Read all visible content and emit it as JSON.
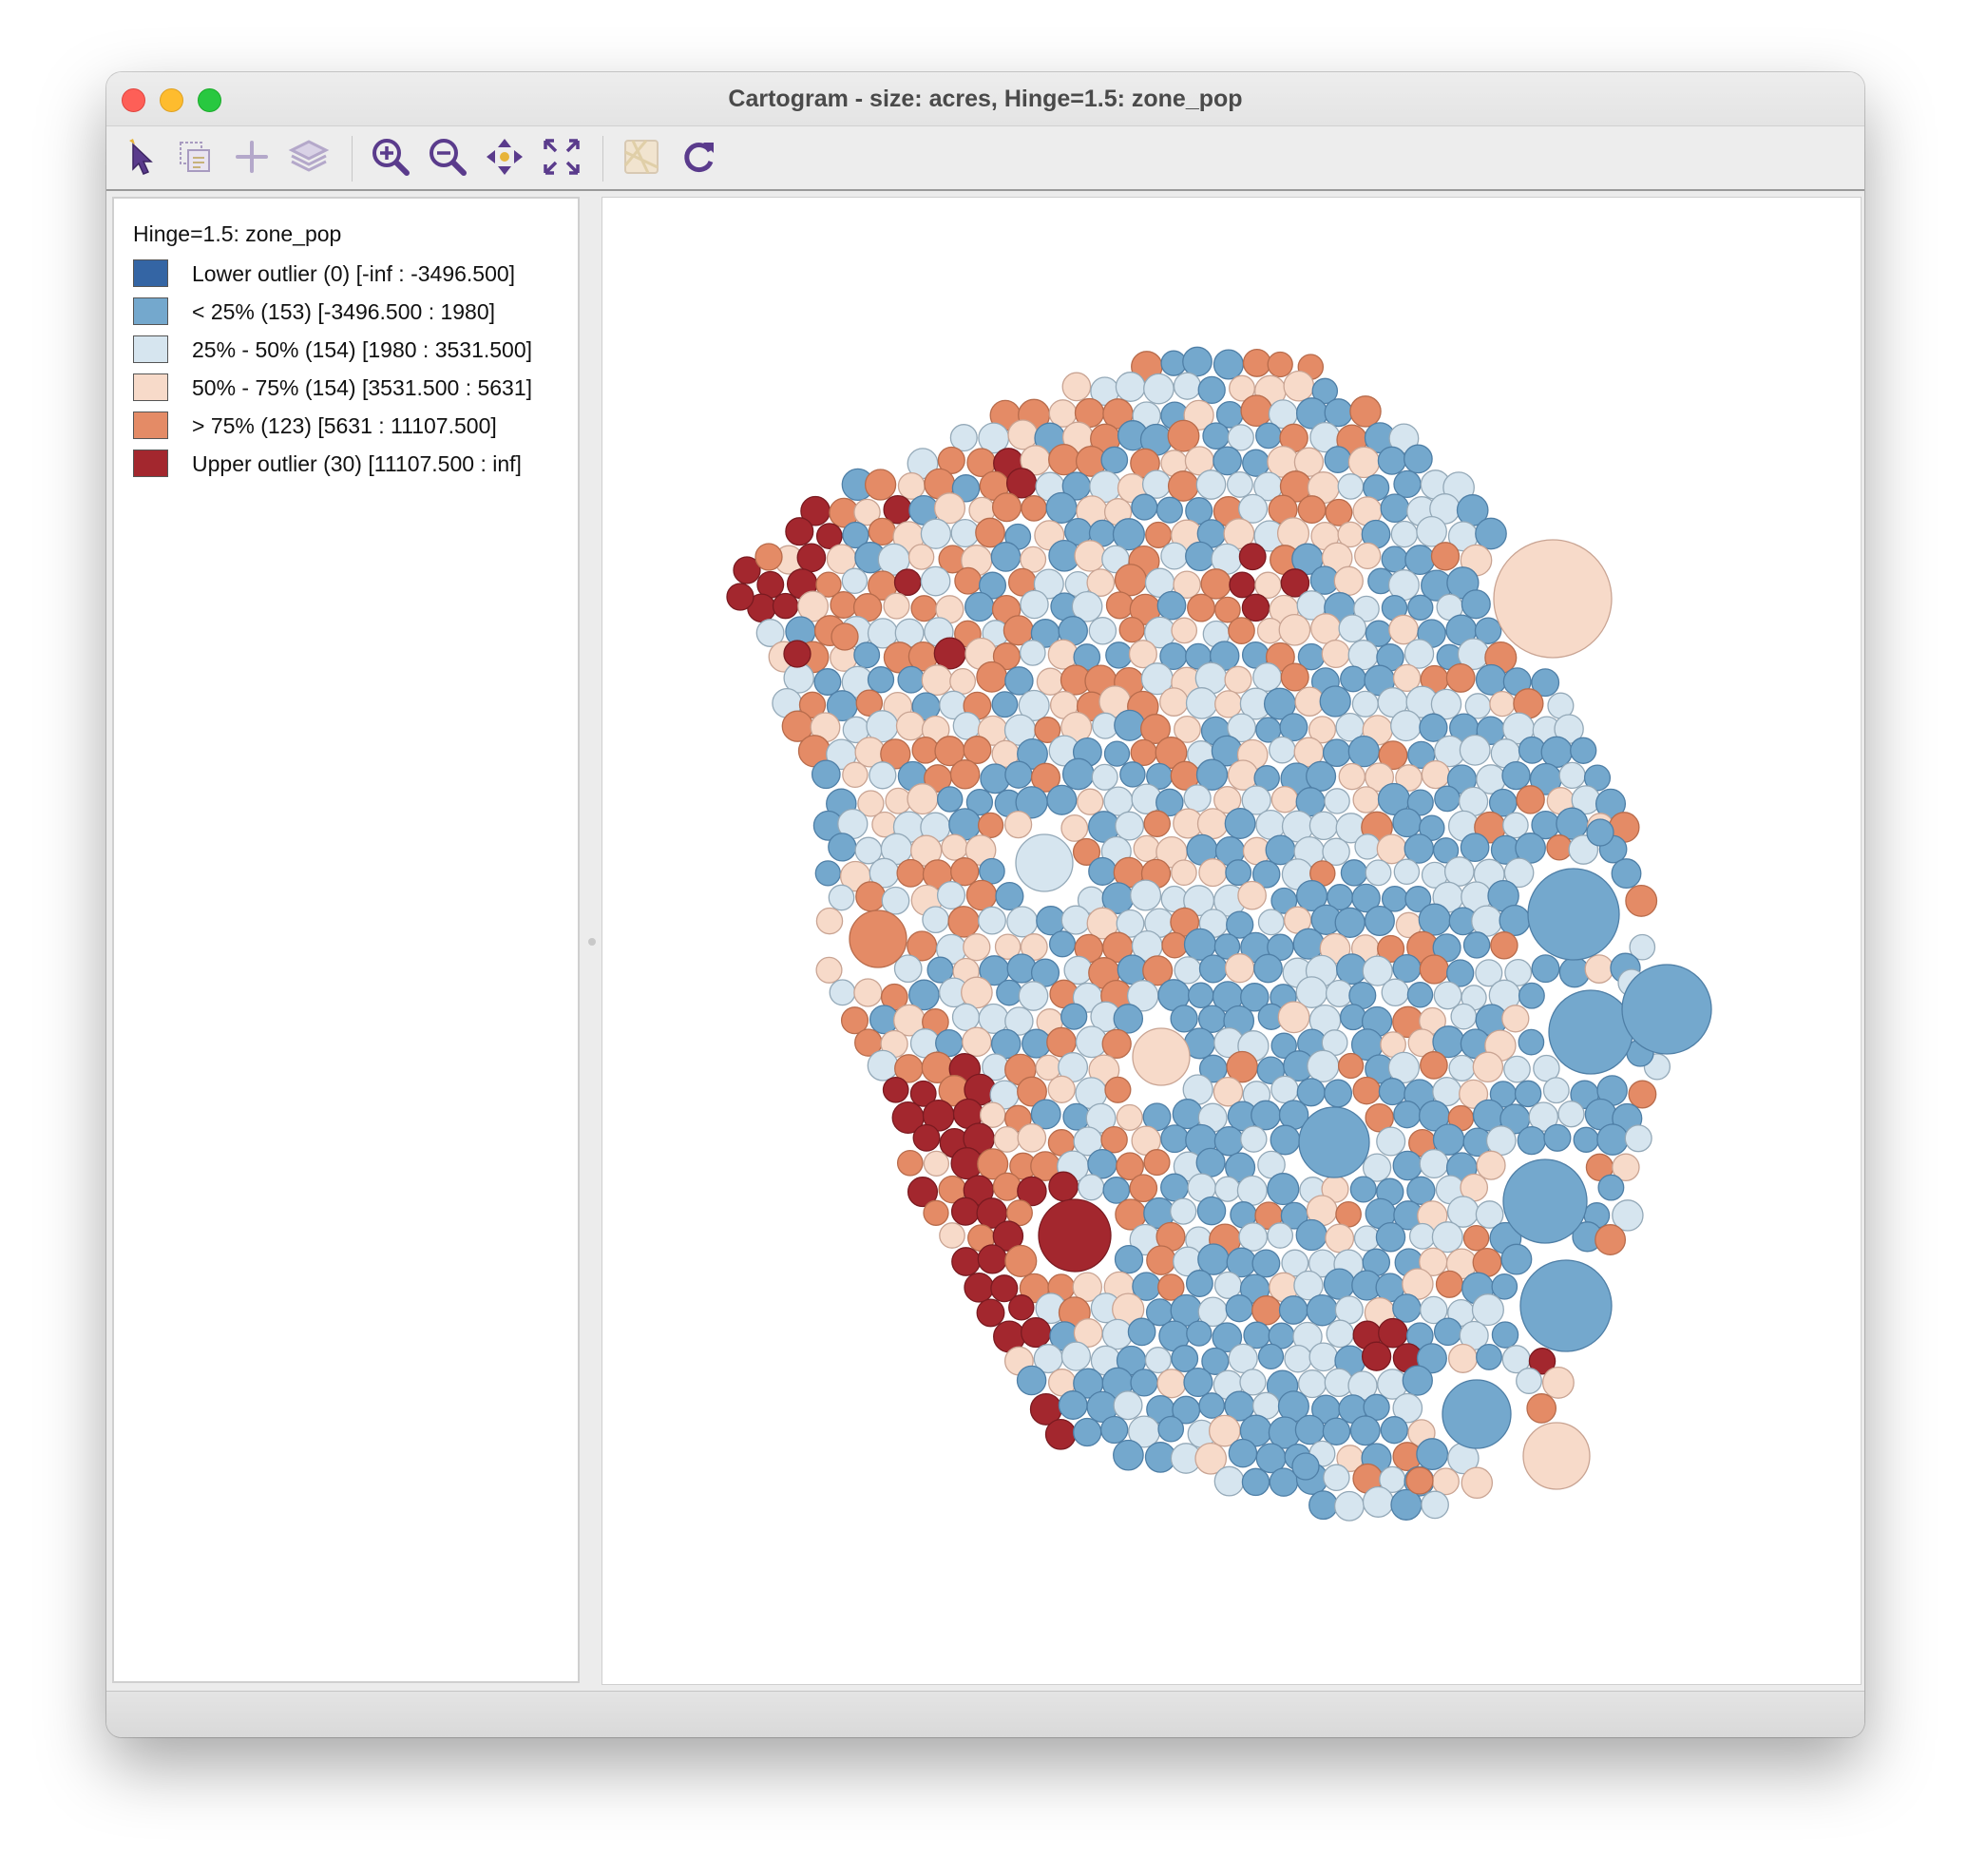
{
  "window": {
    "title": "Cartogram - size: acres, Hinge=1.5: zone_pop"
  },
  "toolbar": {
    "tools": [
      {
        "name": "select-tool-icon"
      },
      {
        "name": "selection-copy-icon"
      },
      {
        "name": "add-plus-icon"
      },
      {
        "name": "layers-icon"
      },
      {
        "name": "zoom-in-icon"
      },
      {
        "name": "zoom-out-icon"
      },
      {
        "name": "pan-icon"
      },
      {
        "name": "fit-extent-icon"
      },
      {
        "name": "basemap-icon"
      },
      {
        "name": "refresh-icon"
      }
    ]
  },
  "legend": {
    "title": "Hinge=1.5: zone_pop",
    "items": [
      {
        "label": "Lower outlier (0)  [-inf : -3496.500]",
        "color": "#3465a4"
      },
      {
        "label": "< 25% (153)  [-3496.500 : 1980]",
        "color": "#74a8cd"
      },
      {
        "label": "25% - 50% (154)  [1980 : 3531.500]",
        "color": "#d6e5ef"
      },
      {
        "label": "50% - 75% (154)  [3531.500 : 5631]",
        "color": "#f7dac9"
      },
      {
        "label": "> 75% (123)  [5631 : 11107.500]",
        "color": "#e48b66"
      },
      {
        "label": "Upper outlier (30)  [11107.500 : inf]",
        "color": "#a3272e"
      }
    ]
  },
  "cartogram": {
    "category_colors": [
      "#3465a4",
      "#74a8cd",
      "#d6e5ef",
      "#f7dac9",
      "#e48b66",
      "#a3272e"
    ],
    "category_strokes": [
      "#24497a",
      "#4f7fa6",
      "#94a9b8",
      "#c9a493",
      "#b86c4c",
      "#7a1a20"
    ],
    "category_counts": [
      0,
      153,
      154,
      154,
      123,
      30
    ],
    "large_circles": [
      {
        "category": 3
      },
      {
        "category": 1
      },
      {
        "category": 1
      },
      {
        "category": 1
      },
      {
        "category": 1
      },
      {
        "category": 5
      },
      {
        "category": 1
      },
      {
        "category": 1
      },
      {
        "category": 1
      },
      {
        "category": 3
      },
      {
        "category": 2
      },
      {
        "category": 3
      },
      {
        "category": 4
      }
    ]
  }
}
